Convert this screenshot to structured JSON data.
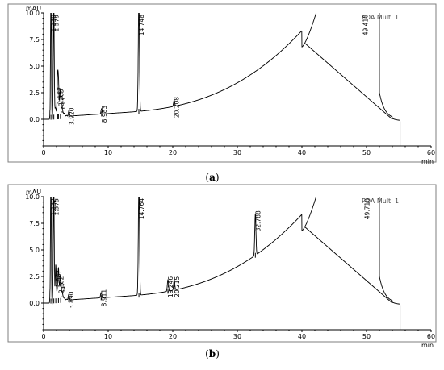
{
  "chart_data": [
    {
      "type": "line",
      "caption_open": "(",
      "caption_letter": "a",
      "caption_close": ")",
      "legend": "PDA Multi 1",
      "ylabel": "mAU",
      "xlabel": "min",
      "xlim": [
        0,
        60
      ],
      "ylim": [
        -2.5,
        10
      ],
      "xticks": [
        0,
        10,
        20,
        30,
        40,
        50,
        60
      ],
      "yticks": [
        0.0,
        2.5,
        5.0,
        7.5,
        10.0
      ],
      "ytick_labels": [
        "0.0",
        "2.5",
        "5.0",
        "7.5",
        "10.0"
      ],
      "peaks": [
        {
          "label": "1.139",
          "rt": 1.14,
          "height": 10.5
        },
        {
          "label": "1.579",
          "rt": 1.58,
          "height": 10.5
        },
        {
          "label": "2.167",
          "rt": 2.17,
          "height": 2.5
        },
        {
          "label": "2.303",
          "rt": 2.3,
          "height": 2.3
        },
        {
          "label": "2.613",
          "rt": 2.61,
          "height": 1.5
        },
        {
          "label": "3.920",
          "rt": 3.92,
          "height": 0.5
        },
        {
          "label": "8.983",
          "rt": 8.98,
          "height": 0.5
        },
        {
          "label": "14.748",
          "rt": 14.75,
          "height": 10.5
        },
        {
          "label": "20.208",
          "rt": 20.21,
          "height": 0.6
        },
        {
          "label": "49.410",
          "rt": 49.41,
          "height": 10.5
        }
      ]
    },
    {
      "type": "line",
      "caption_open": "(",
      "caption_letter": "b",
      "caption_close": ")",
      "legend": "PDA Multi 1",
      "ylabel": "mAU",
      "xlabel": "min",
      "xlim": [
        0,
        60
      ],
      "ylim": [
        -2.5,
        10
      ],
      "xticks": [
        0,
        10,
        20,
        30,
        40,
        50,
        60
      ],
      "yticks": [
        0.0,
        2.5,
        5.0,
        7.5,
        10.0
      ],
      "ytick_labels": [
        "0.0",
        "2.5",
        "5.0",
        "7.5",
        "10.0"
      ],
      "peaks": [
        {
          "label": "1.132",
          "rt": 1.13,
          "height": 10.5
        },
        {
          "label": "1.575",
          "rt": 1.58,
          "height": 10.5
        },
        {
          "label": "1.887",
          "rt": 1.89,
          "height": 2.6
        },
        {
          "label": "2.302",
          "rt": 2.3,
          "height": 2.0
        },
        {
          "label": "2.642",
          "rt": 2.64,
          "height": 1.4
        },
        {
          "label": "3.890",
          "rt": 3.89,
          "height": 0.5
        },
        {
          "label": "8.911",
          "rt": 8.91,
          "height": 0.5
        },
        {
          "label": "14.764",
          "rt": 14.76,
          "height": 10.5
        },
        {
          "label": "19.246",
          "rt": 19.25,
          "height": 1.1
        },
        {
          "label": "20.215",
          "rt": 20.22,
          "height": 1.0
        },
        {
          "label": "32.788",
          "rt": 32.79,
          "height": 3.9
        },
        {
          "label": "49.710",
          "rt": 49.71,
          "height": 10.5
        }
      ]
    }
  ]
}
